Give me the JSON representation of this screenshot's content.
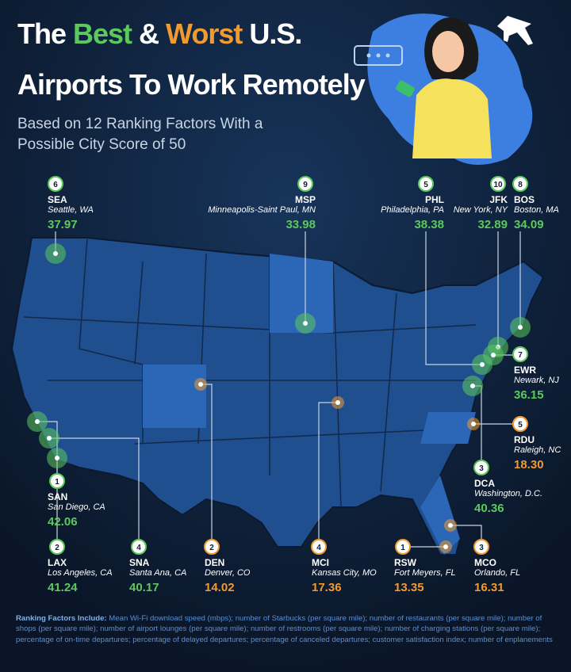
{
  "header": {
    "title_line1": [
      "The",
      "Best",
      "&",
      "Worst",
      "U.S."
    ],
    "title_line2": "Airports To Work Remotely",
    "subtitle_line1": "Based on 12 Ranking Factors With a",
    "subtitle_line2": "Possible City Score of 50"
  },
  "airports": [
    {
      "rank": 6,
      "code": "SEA",
      "city": "Seattle, WA",
      "score": "37.97",
      "color": "#5cc95c"
    },
    {
      "rank": 9,
      "code": "MSP",
      "city": "Minneapolis-Saint Paul, MN",
      "score": "33.98",
      "color": "#5cc95c"
    },
    {
      "rank": 5,
      "code": "PHL",
      "city": "Philadelphia, PA",
      "score": "38.38",
      "color": "#5cc95c"
    },
    {
      "rank": 10,
      "code": "JFK",
      "city": "New York, NY",
      "score": "32.89",
      "color": "#5cc95c"
    },
    {
      "rank": 8,
      "code": "BOS",
      "city": "Boston, MA",
      "score": "34.09",
      "color": "#5cc95c"
    },
    {
      "rank": 7,
      "code": "EWR",
      "city": "Newark, NJ",
      "score": "36.15",
      "color": "#5cc95c"
    },
    {
      "rank": 5,
      "code": "RDU",
      "city": "Raleigh, NC",
      "score": "18.30",
      "color": "#f39a2e"
    },
    {
      "rank": 3,
      "code": "DCA",
      "city": "Washington, D.C.",
      "score": "40.36",
      "color": "#5cc95c"
    },
    {
      "rank": 1,
      "code": "SAN",
      "city": "San Diego, CA",
      "score": "42.06",
      "color": "#5cc95c"
    },
    {
      "rank": 2,
      "code": "LAX",
      "city": "Los Angeles, CA",
      "score": "41.24",
      "color": "#5cc95c"
    },
    {
      "rank": 4,
      "code": "SNA",
      "city": "Santa Ana, CA",
      "score": "40.17",
      "color": "#5cc95c"
    },
    {
      "rank": 2,
      "code": "DEN",
      "city": "Denver, CO",
      "score": "14.02",
      "color": "#f39a2e"
    },
    {
      "rank": 4,
      "code": "MCI",
      "city": "Kansas City, MO",
      "score": "17.36",
      "color": "#f39a2e"
    },
    {
      "rank": 1,
      "code": "RSW",
      "city": "Fort Meyers, FL",
      "score": "13.35",
      "color": "#f39a2e"
    },
    {
      "rank": 3,
      "code": "MCO",
      "city": "Orlando, FL",
      "score": "16.31",
      "color": "#f39a2e"
    }
  ],
  "footer": {
    "lead": "Ranking Factors Include:",
    "text": "Mean Wi-Fi download speed (mbps); number of Starbucks (per square mile); number of restaurants (per square mile); number of shops (per square mile); number of airport lounges (per square mile); number of restrooms (per square mile); number of charging stations (per square mile); percentage of on-time departures; percentage of delayed departures; percentage of canceled departures; customer satisfaction index; number of enplanements"
  }
}
